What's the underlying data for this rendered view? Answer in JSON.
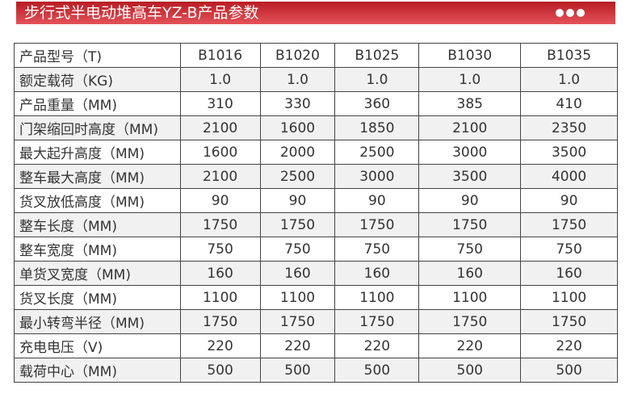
{
  "header": {
    "title": "步行式半电动堆高车YZ-B产品参数",
    "accent": "#c8242b"
  },
  "table": {
    "rows": [
      {
        "label": "产品型号（T)",
        "values": [
          "B1016",
          "B1020",
          "B1025",
          "B1030",
          "B1035"
        ]
      },
      {
        "label": "额定载荷（KG)",
        "values": [
          "1.0",
          "1.0",
          "1.0",
          "1.0",
          "1.0"
        ]
      },
      {
        "label": "产品重量（MM)",
        "values": [
          "310",
          "330",
          "360",
          "385",
          "410"
        ]
      },
      {
        "label": "门架缩回时高度（MM)",
        "values": [
          "2100",
          "1600",
          "1850",
          "2100",
          "2350"
        ]
      },
      {
        "label": "最大起升高度（MM)",
        "values": [
          "1600",
          "2000",
          "2500",
          "3000",
          "3500"
        ]
      },
      {
        "label": "整车最大高度（MM)",
        "values": [
          "2100",
          "2500",
          "3000",
          "3500",
          "4000"
        ]
      },
      {
        "label": "货叉放低高度（MM)",
        "values": [
          "90",
          "90",
          "90",
          "90",
          "90"
        ]
      },
      {
        "label": "整车长度（MM)",
        "values": [
          "1750",
          "1750",
          "1750",
          "1750",
          "1750"
        ]
      },
      {
        "label": "整车宽度（MM)",
        "values": [
          "750",
          "750",
          "750",
          "750",
          "750"
        ]
      },
      {
        "label": "单货叉宽度（MM)",
        "values": [
          "160",
          "160",
          "160",
          "160",
          "160"
        ]
      },
      {
        "label": "货叉长度（MM)",
        "values": [
          "1100",
          "1100",
          "1100",
          "1100",
          "1100"
        ]
      },
      {
        "label": "最小转弯半径（MM)",
        "values": [
          "1750",
          "1750",
          "1750",
          "1750",
          "1750"
        ]
      },
      {
        "label": "充电电压（V)",
        "values": [
          "220",
          "220",
          "220",
          "220",
          "220"
        ]
      },
      {
        "label": "载荷中心（MM)",
        "values": [
          "500",
          "500",
          "500",
          "500",
          "500"
        ]
      }
    ]
  }
}
